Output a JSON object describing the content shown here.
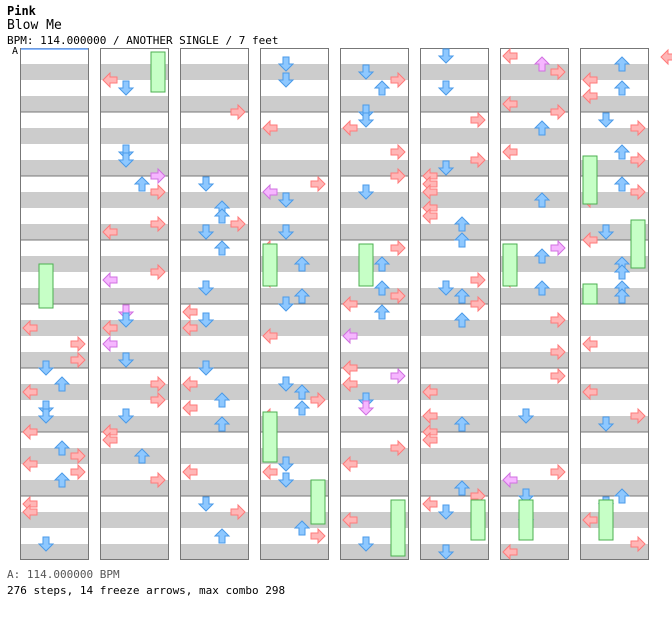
{
  "header": {
    "artist": "Pink",
    "song": "Blow Me",
    "info": "BPM: 114.000000 / ANOTHER SINGLE / 7 feet",
    "marker": "A"
  },
  "footer": {
    "bpm": "A: 114.000000 BPM",
    "stats": "276 steps, 14 freeze arrows, max combo 298"
  },
  "colors": {
    "red_arrow": "#ffb6b6",
    "blue_arrow": "#8ec8ff",
    "pink_arrow": "#f6b6ff",
    "freeze": "#c6ffc6",
    "band": "#cccccc"
  },
  "chart_data": {
    "type": "table",
    "columns": 8,
    "measures_per_column": 8,
    "lanes": [
      "left",
      "down",
      "up",
      "right"
    ],
    "steps": 276,
    "freeze_arrows": 14,
    "max_combo": 298
  }
}
